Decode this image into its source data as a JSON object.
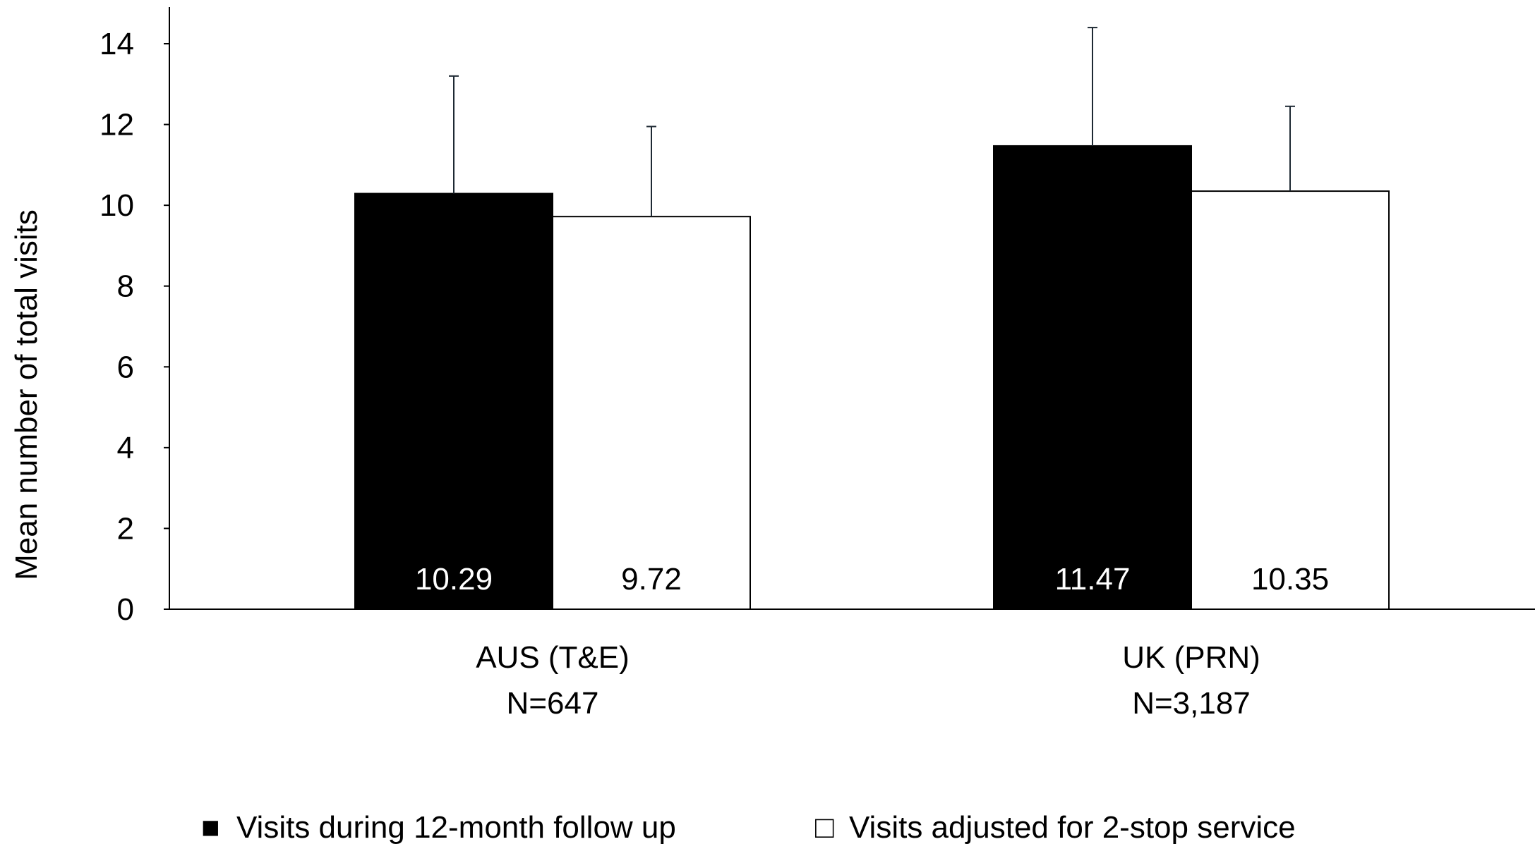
{
  "chart_data": {
    "type": "bar",
    "title": "",
    "xlabel": "",
    "ylabel": "Mean number of total visits",
    "ylim": [
      0,
      14
    ],
    "yticks": [
      0,
      2,
      4,
      6,
      8,
      10,
      12,
      14
    ],
    "grid": false,
    "legend_position": "bottom",
    "categories": [
      {
        "line1": "AUS (T&E)",
        "line2": "N=647"
      },
      {
        "line1": "UK (PRN)",
        "line2": "N=3,187"
      }
    ],
    "series": [
      {
        "name": "Visits during 12-month follow up",
        "color": "#000000",
        "label_color": "#ffffff",
        "values": [
          10.29,
          11.47
        ],
        "labels": [
          "10.29",
          "11.47"
        ],
        "error_upper": [
          13.2,
          14.4
        ]
      },
      {
        "name": "Visits adjusted for 2-stop service",
        "color": "#ffffff",
        "label_color": "#000000",
        "values": [
          9.72,
          10.35
        ],
        "labels": [
          "9.72",
          "10.35"
        ],
        "error_upper": [
          11.95,
          12.45
        ]
      }
    ],
    "legend_markers": [
      "■",
      "□"
    ]
  }
}
